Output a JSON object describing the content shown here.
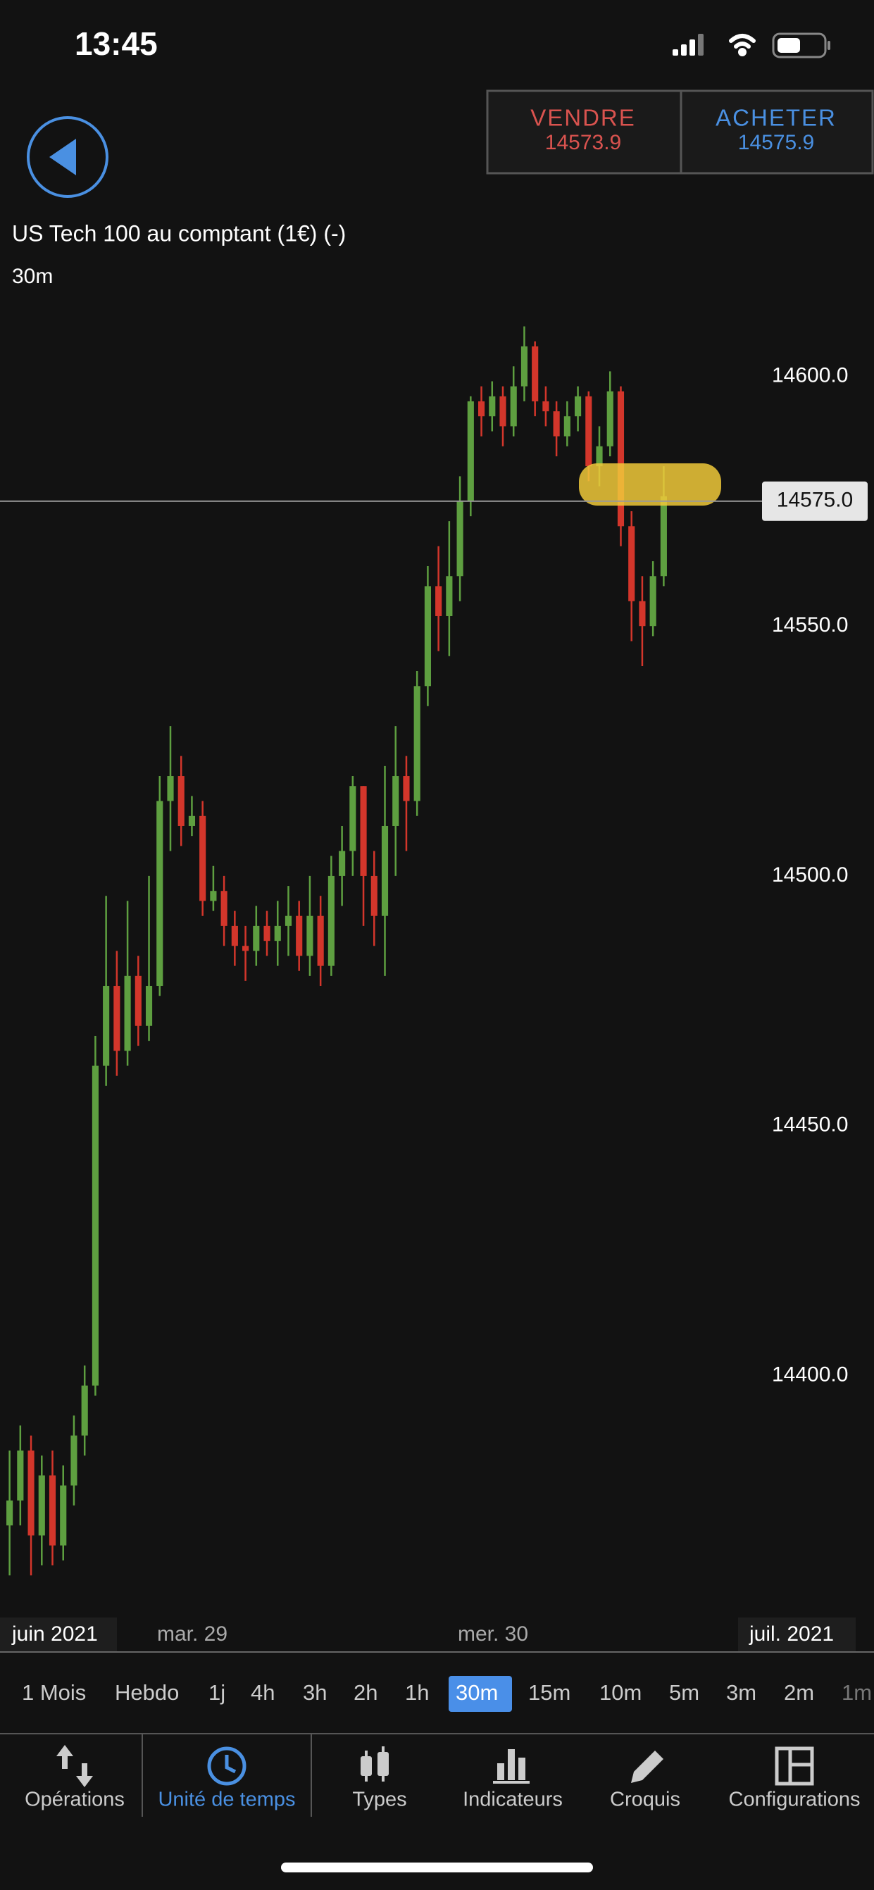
{
  "status_bar": {
    "time": "13:45"
  },
  "trade": {
    "sell": {
      "label": "VENDRE",
      "price": 14573.9
    },
    "buy": {
      "label": "ACHETER",
      "price": 14575.9
    }
  },
  "instrument": {
    "name": "US Tech 100 au comptant (1€) (-)",
    "interval": "30m"
  },
  "chart_data": {
    "type": "candlestick",
    "ylim": [
      14352,
      14615
    ],
    "yticks": [
      {
        "value": 14600,
        "label": "14600.0"
      },
      {
        "value": 14550,
        "label": "14550.0"
      },
      {
        "value": 14500,
        "label": "14500.0"
      },
      {
        "value": 14450,
        "label": "14450.0"
      },
      {
        "value": 14400,
        "label": "14400.0"
      }
    ],
    "current_price": {
      "value": 14575,
      "label": "14575.0"
    },
    "x_labels": [
      "juin 2021",
      "mar. 29",
      "mer. 30",
      "juil. 2021"
    ],
    "up_color": "#5e9f40",
    "down_color": "#d3362b",
    "open": [
      14370,
      14375,
      14385,
      14368,
      14380,
      14366,
      14378,
      14388,
      14398,
      14462,
      14478,
      14465,
      14480,
      14470,
      14478,
      14515,
      14520,
      14510,
      14512,
      14495,
      14497,
      14490,
      14486,
      14485,
      14490,
      14487,
      14490,
      14492,
      14484,
      14492,
      14482,
      14500,
      14505,
      14518,
      14500,
      14492,
      14510,
      14520,
      14515,
      14538,
      14558,
      14552,
      14560,
      14575,
      14595,
      14592,
      14596,
      14590,
      14598,
      14606,
      14595,
      14593,
      14588,
      14592,
      14596,
      14582,
      14586,
      14597,
      14570,
      14555,
      14550,
      14560
    ],
    "high": [
      14385,
      14390,
      14388,
      14384,
      14385,
      14382,
      14392,
      14402,
      14468,
      14496,
      14485,
      14495,
      14484,
      14500,
      14520,
      14530,
      14524,
      14516,
      14515,
      14502,
      14500,
      14493,
      14490,
      14494,
      14493,
      14495,
      14498,
      14495,
      14500,
      14496,
      14504,
      14510,
      14520,
      14518,
      14505,
      14522,
      14530,
      14524,
      14541,
      14562,
      14566,
      14571,
      14580,
      14596,
      14598,
      14599,
      14598,
      14602,
      14610,
      14607,
      14598,
      14595,
      14595,
      14598,
      14597,
      14590,
      14601,
      14598,
      14573,
      14560,
      14563,
      14582
    ],
    "low": [
      14360,
      14370,
      14360,
      14362,
      14362,
      14363,
      14374,
      14384,
      14396,
      14458,
      14460,
      14462,
      14466,
      14467,
      14476,
      14505,
      14506,
      14508,
      14492,
      14493,
      14486,
      14482,
      14479,
      14482,
      14484,
      14482,
      14484,
      14481,
      14480,
      14478,
      14480,
      14494,
      14500,
      14490,
      14486,
      14480,
      14500,
      14505,
      14512,
      14534,
      14545,
      14544,
      14555,
      14572,
      14588,
      14589,
      14586,
      14588,
      14595,
      14592,
      14590,
      14584,
      14586,
      14589,
      14579,
      14578,
      14584,
      14566,
      14547,
      14542,
      14548,
      14558
    ],
    "close": [
      14375,
      14385,
      14368,
      14380,
      14366,
      14378,
      14388,
      14398,
      14462,
      14478,
      14465,
      14480,
      14470,
      14478,
      14515,
      14520,
      14510,
      14512,
      14495,
      14497,
      14490,
      14486,
      14485,
      14490,
      14487,
      14490,
      14492,
      14484,
      14492,
      14482,
      14500,
      14505,
      14518,
      14500,
      14492,
      14510,
      14520,
      14515,
      14538,
      14558,
      14552,
      14560,
      14575,
      14595,
      14592,
      14596,
      14590,
      14598,
      14606,
      14595,
      14593,
      14588,
      14592,
      14596,
      14582,
      14586,
      14597,
      14570,
      14555,
      14550,
      14560,
      14576
    ]
  },
  "timeframes": {
    "items": [
      "1 Mois",
      "Hebdo",
      "1j",
      "4h",
      "3h",
      "2h",
      "1h",
      "30m",
      "15m",
      "10m",
      "5m",
      "3m",
      "2m",
      "1m"
    ],
    "selected": 7
  },
  "nav": {
    "items": [
      "Opérations",
      "Unité de temps",
      "Types",
      "Indicateurs",
      "Croquis",
      "Configurations"
    ],
    "active": 1
  }
}
